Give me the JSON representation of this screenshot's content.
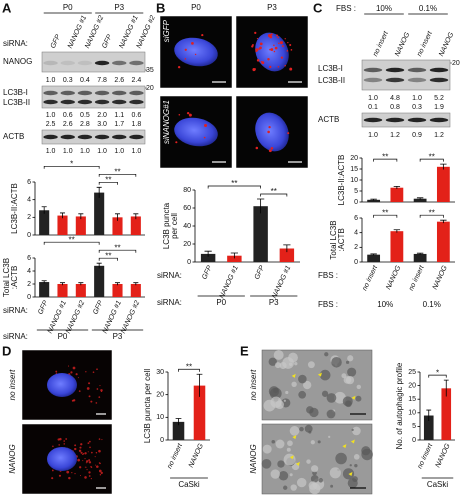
{
  "panels": {
    "A": {
      "letter": "A",
      "groups": [
        "P0",
        "P3"
      ],
      "siRNA_label": "siRNA:",
      "columns": [
        "GFP",
        "NANOG #1",
        "NANOG #2",
        "GFP",
        "NANOG #1",
        "NANOG #2"
      ],
      "blots": [
        {
          "labels": [
            "NANOG"
          ],
          "marker": "35",
          "rows": [
            [
              "1.0",
              "0.3",
              "0.4",
              "7.8",
              "2.6",
              "2.4"
            ]
          ]
        },
        {
          "labels": [
            "LC3B-I",
            "LC3B-II"
          ],
          "marker": "20",
          "rows": [
            [
              "1.0",
              "0.6",
              "0.5",
              "2.0",
              "1.1",
              "0.6"
            ],
            [
              "2.5",
              "2.6",
              "2.8",
              "3.0",
              "1.7",
              "1.8"
            ]
          ]
        },
        {
          "labels": [
            "ACTB"
          ],
          "rows": [
            [
              "1.0",
              "1.0",
              "1.0",
              "1.0",
              "1.0",
              "1.0"
            ]
          ]
        }
      ]
    },
    "B": {
      "letter": "B",
      "groups": [
        "P0",
        "P3"
      ],
      "rows": [
        "siGFP",
        "siNANOG#1"
      ]
    },
    "C": {
      "letter": "C",
      "fbs_label": "FBS :",
      "groups": [
        "10%",
        "0.1%"
      ],
      "columns": [
        "no insert",
        "NANOG",
        "no insert",
        "NANOG"
      ],
      "blots": [
        {
          "labels": [
            "LC3B-I",
            "LC3B-II"
          ],
          "marker": "20",
          "rows": [
            [
              "1.0",
              "4.8",
              "1.0",
              "5.2"
            ],
            [
              "0.1",
              "0.8",
              "0.3",
              "1.9"
            ]
          ]
        },
        {
          "labels": [
            "ACTB"
          ],
          "rows": [
            [
              "1.0",
              "1.2",
              "0.9",
              "1.2"
            ]
          ]
        }
      ]
    },
    "D": {
      "letter": "D",
      "rows": [
        "no insert",
        "NANOG"
      ]
    },
    "E": {
      "letter": "E",
      "rows": [
        "no insert",
        "NANOG"
      ]
    }
  },
  "chart_data": [
    {
      "type": "bar",
      "y_label": [
        "LC3B-II:ACTB"
      ],
      "values": [
        2.8,
        2.2,
        2.1,
        4.8,
        2.0,
        2.1
      ],
      "errors": [
        0.4,
        0.3,
        0.3,
        0.6,
        0.4,
        0.3
      ],
      "colors": [
        "#222222",
        "#e32119",
        "#e32119",
        "#222222",
        "#e32119",
        "#e32119"
      ],
      "ylim": [
        0,
        6
      ],
      "yticks": [
        0,
        2,
        4,
        6
      ],
      "significance": [
        {
          "label": "*",
          "pair": [
            0,
            3
          ]
        },
        {
          "label": "**",
          "pair": [
            3,
            4
          ]
        },
        {
          "label": "**",
          "pair": [
            3,
            5
          ]
        }
      ]
    },
    {
      "type": "bar",
      "y_label": [
        "Total LC3B",
        ":ACTB"
      ],
      "values": [
        2.3,
        2.0,
        2.0,
        4.8,
        2.0,
        2.0
      ],
      "errors": [
        0.2,
        0.2,
        0.2,
        0.4,
        0.2,
        0.2
      ],
      "colors": [
        "#222222",
        "#e32119",
        "#e32119",
        "#222222",
        "#e32119",
        "#e32119"
      ],
      "ylim": [
        0,
        6
      ],
      "yticks": [
        0,
        2,
        4,
        6
      ],
      "significance": [
        {
          "label": "**",
          "pair": [
            0,
            3
          ]
        },
        {
          "label": "**",
          "pair": [
            3,
            4
          ]
        },
        {
          "label": "**",
          "pair": [
            3,
            5
          ]
        }
      ],
      "x_prefix": "siRNA:",
      "categories": [
        "GFP",
        "NANOG #1",
        "NANOG #2",
        "GFP",
        "NANOG #1",
        "NANOG #2"
      ],
      "groups": [
        "P0",
        "P3"
      ]
    },
    {
      "type": "bar",
      "y_label": [
        "LC3B puncta",
        "per cell"
      ],
      "values": [
        9,
        7,
        62,
        15
      ],
      "errors": [
        3,
        3,
        8,
        4
      ],
      "colors": [
        "#222222",
        "#e32119",
        "#222222",
        "#e32119"
      ],
      "ylim": [
        0,
        80
      ],
      "yticks": [
        0,
        20,
        40,
        60,
        80
      ],
      "significance": [
        {
          "label": "**",
          "pair": [
            0,
            2
          ]
        },
        {
          "label": "**",
          "pair": [
            2,
            3
          ]
        }
      ],
      "x_prefix": "siRNA:",
      "categories": [
        "GFP",
        "NANOG #1",
        "GFP",
        "NANOG #1"
      ],
      "groups": [
        "P0",
        "P3"
      ]
    },
    {
      "type": "bar",
      "y_label": [
        "LC3B-II:ACTB"
      ],
      "values": [
        1,
        6.5,
        1.5,
        16
      ],
      "errors": [
        0.3,
        0.6,
        0.4,
        1.2
      ],
      "colors": [
        "#222222",
        "#e32119",
        "#222222",
        "#e32119"
      ],
      "ylim": [
        0,
        20
      ],
      "yticks": [
        0,
        5,
        10,
        15,
        20
      ],
      "significance": [
        {
          "label": "**",
          "pair": [
            0,
            1
          ]
        },
        {
          "label": "**",
          "pair": [
            2,
            3
          ]
        }
      ]
    },
    {
      "type": "bar",
      "y_label": [
        "Total LC3B",
        ":ACTB"
      ],
      "values": [
        1,
        4.2,
        1.1,
        5.5
      ],
      "errors": [
        0.1,
        0.2,
        0.1,
        0.2
      ],
      "colors": [
        "#222222",
        "#e32119",
        "#222222",
        "#e32119"
      ],
      "ylim": [
        0,
        6
      ],
      "yticks": [
        0,
        2,
        4,
        6
      ],
      "significance": [
        {
          "label": "**",
          "pair": [
            0,
            1
          ]
        },
        {
          "label": "**",
          "pair": [
            2,
            3
          ]
        }
      ],
      "x_prefix": "FBS :",
      "categories": [
        "no insert",
        "NANOG",
        "no insert",
        "NANOG"
      ],
      "groups": [
        "10%",
        "0.1%"
      ]
    },
    {
      "type": "bar",
      "y_label": [
        "LC3B puncta per cell"
      ],
      "values": [
        8,
        24
      ],
      "errors": [
        1.5,
        5
      ],
      "colors": [
        "#222222",
        "#e32119"
      ],
      "ylim": [
        0,
        30
      ],
      "yticks": [
        0,
        10,
        20,
        30
      ],
      "significance": [
        {
          "label": "**",
          "pair": [
            0,
            1
          ]
        }
      ],
      "categories": [
        "no insert",
        "NANOG"
      ],
      "groups": [
        "CaSki"
      ]
    },
    {
      "type": "bar",
      "y_label": [
        "No. of autophagic profile"
      ],
      "values": [
        9,
        19
      ],
      "errors": [
        2,
        3
      ],
      "colors": [
        "#222222",
        "#e32119"
      ],
      "ylim": [
        0,
        25
      ],
      "yticks": [
        0,
        5,
        10,
        15,
        20,
        25
      ],
      "significance": [
        {
          "label": "*",
          "pair": [
            0,
            1
          ]
        }
      ],
      "categories": [
        "no insert",
        "NANOG"
      ],
      "groups": [
        "CaSki"
      ]
    }
  ]
}
